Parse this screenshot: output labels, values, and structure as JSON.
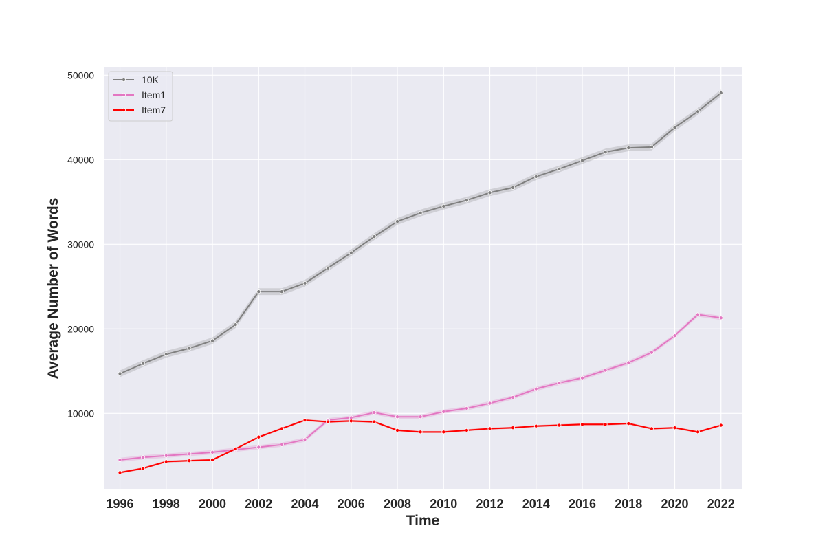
{
  "chart_data": {
    "type": "line",
    "title": "",
    "xlabel": "Time",
    "ylabel": "Average Number of Words",
    "x": [
      1996,
      1997,
      1998,
      1999,
      2000,
      2001,
      2002,
      2003,
      2004,
      2005,
      2006,
      2007,
      2008,
      2009,
      2010,
      2011,
      2012,
      2013,
      2014,
      2015,
      2016,
      2017,
      2018,
      2019,
      2020,
      2021,
      2022
    ],
    "x_ticks": [
      1996,
      1998,
      2000,
      2002,
      2004,
      2006,
      2008,
      2010,
      2012,
      2014,
      2016,
      2018,
      2020,
      2022
    ],
    "xlim": [
      1995.3,
      2022.9
    ],
    "y_ticks": [
      10000,
      20000,
      30000,
      40000,
      50000
    ],
    "ylim": [
      1000,
      51000
    ],
    "grid": true,
    "legend_position": "top-left",
    "series": [
      {
        "name": "10K",
        "color": "#7f7f7f",
        "band": 400,
        "values": [
          14700,
          15900,
          17000,
          17700,
          18600,
          20500,
          24400,
          24400,
          25400,
          27200,
          29000,
          30900,
          32700,
          33700,
          34500,
          35200,
          36100,
          36700,
          38000,
          38900,
          39900,
          40900,
          41400,
          41500,
          43800,
          45700,
          47900
        ]
      },
      {
        "name": "Item1",
        "color": "#e377c2",
        "band": 250,
        "values": [
          4500,
          4800,
          5000,
          5200,
          5400,
          5700,
          6000,
          6300,
          6900,
          9200,
          9500,
          10100,
          9600,
          9600,
          10200,
          10600,
          11200,
          11900,
          12900,
          13600,
          14200,
          15100,
          16000,
          17200,
          19200,
          21700,
          21300
        ]
      },
      {
        "name": "Item7",
        "color": "#ff0000",
        "band": 120,
        "values": [
          3000,
          3500,
          4300,
          4400,
          4500,
          5800,
          7200,
          8200,
          9200,
          9000,
          9100,
          9000,
          8000,
          7800,
          7800,
          8000,
          8200,
          8300,
          8500,
          8600,
          8700,
          8700,
          8800,
          8200,
          8300,
          7800,
          8600
        ]
      }
    ]
  }
}
